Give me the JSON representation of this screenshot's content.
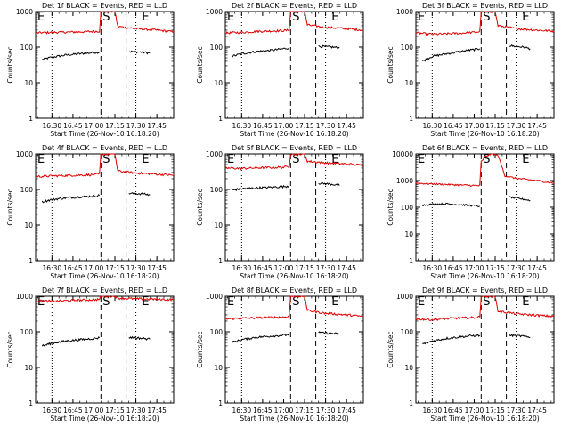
{
  "colors": {
    "events": "#000000",
    "lld": "#e00000",
    "background": "#ffffff"
  },
  "chart_data": [
    {
      "type": "line",
      "title": "Det 1f BLACK = Events, RED = LLD",
      "xlabel": "Start Time (26-Nov-10 16:18:20)",
      "ylabel": "Counts/sec",
      "y_scale": "log",
      "ylim": [
        1,
        1000
      ],
      "y_ticks": [
        "1",
        "10",
        "100",
        "1000"
      ],
      "x_ticks": [
        "16:30",
        "16:45",
        "17:00",
        "17:15",
        "17:30",
        "17:45"
      ],
      "xlim": [
        "16:18:20",
        "17:57"
      ],
      "markers": {
        "E1": "16:18:20",
        "S": "17:05",
        "E2": "17:23"
      },
      "series": [
        {
          "name": "Events",
          "x": [
            "16:23",
            "16:30",
            "16:40",
            "16:50",
            "17:00",
            "17:04",
            "17:15",
            "17:25",
            "17:35",
            "17:40"
          ],
          "y": [
            45,
            52,
            60,
            65,
            70,
            72,
            null,
            75,
            72,
            68
          ]
        },
        {
          "name": "LLD",
          "x": [
            "16:18:20",
            "16:30",
            "16:45",
            "17:00",
            "17:04",
            "17:05",
            "17:15",
            "17:17",
            "17:30",
            "17:45",
            "17:57"
          ],
          "y": [
            250,
            260,
            265,
            275,
            280,
            1000,
            1000,
            380,
            330,
            300,
            270
          ]
        }
      ]
    },
    {
      "type": "line",
      "title": "Det 2f BLACK = Events, RED = LLD",
      "xlabel": "Start Time (26-Nov-10 16:18:20)",
      "ylabel": "Counts/sec",
      "y_scale": "log",
      "ylim": [
        1,
        1000
      ],
      "y_ticks": [
        "1",
        "10",
        "100",
        "1000"
      ],
      "x_ticks": [
        "16:30",
        "16:45",
        "17:00",
        "17:15",
        "17:30",
        "17:45"
      ],
      "xlim": [
        "16:18:20",
        "17:57"
      ],
      "markers": {
        "E1": "16:18:20",
        "S": "17:05",
        "E2": "17:23"
      },
      "series": [
        {
          "name": "Events",
          "x": [
            "16:23",
            "16:30",
            "16:40",
            "16:50",
            "17:00",
            "17:04",
            "17:15",
            "17:25",
            "17:35",
            "17:40"
          ],
          "y": [
            55,
            65,
            75,
            80,
            90,
            95,
            null,
            105,
            100,
            95
          ]
        },
        {
          "name": "LLD",
          "x": [
            "16:18:20",
            "16:30",
            "16:45",
            "17:00",
            "17:04",
            "17:05",
            "17:15",
            "17:17",
            "17:30",
            "17:45",
            "17:57"
          ],
          "y": [
            250,
            260,
            280,
            290,
            300,
            1000,
            1000,
            420,
            360,
            330,
            300
          ]
        }
      ]
    },
    {
      "type": "line",
      "title": "Det 3f BLACK = Events, RED = LLD",
      "xlabel": "Start Time (26-Nov-10 16:18:20)",
      "ylabel": "Counts/sec",
      "y_scale": "log",
      "ylim": [
        1,
        1000
      ],
      "y_ticks": [
        "1",
        "10",
        "100",
        "1000"
      ],
      "x_ticks": [
        "16:30",
        "16:45",
        "17:00",
        "17:15",
        "17:30",
        "17:45"
      ],
      "xlim": [
        "16:18:20",
        "17:57"
      ],
      "markers": {
        "E1": "16:18:20",
        "S": "17:05",
        "E2": "17:23"
      },
      "series": [
        {
          "name": "Events",
          "x": [
            "16:23",
            "16:30",
            "16:40",
            "16:50",
            "17:00",
            "17:04",
            "17:15",
            "17:25",
            "17:35",
            "17:40"
          ],
          "y": [
            40,
            55,
            65,
            75,
            85,
            90,
            null,
            110,
            100,
            90
          ]
        },
        {
          "name": "LLD",
          "x": [
            "16:18:20",
            "16:30",
            "16:45",
            "17:00",
            "17:04",
            "17:05",
            "17:15",
            "17:17",
            "17:30",
            "17:45",
            "17:57"
          ],
          "y": [
            250,
            230,
            240,
            260,
            270,
            1000,
            1000,
            400,
            330,
            300,
            280
          ]
        }
      ]
    },
    {
      "type": "line",
      "title": "Det 4f BLACK = Events, RED = LLD",
      "xlabel": "Start Time (26-Nov-10 16:18:20)",
      "ylabel": "Counts/sec",
      "y_scale": "log",
      "ylim": [
        1,
        1000
      ],
      "y_ticks": [
        "1",
        "10",
        "100",
        "1000"
      ],
      "x_ticks": [
        "16:30",
        "16:45",
        "17:00",
        "17:15",
        "17:30",
        "17:45"
      ],
      "xlim": [
        "16:18:20",
        "17:57"
      ],
      "markers": {
        "E1": "16:18:20",
        "S": "17:05",
        "E2": "17:23"
      },
      "series": [
        {
          "name": "Events",
          "x": [
            "16:23",
            "16:30",
            "16:40",
            "16:50",
            "17:00",
            "17:04",
            "17:15",
            "17:25",
            "17:35",
            "17:40"
          ],
          "y": [
            45,
            52,
            58,
            62,
            65,
            68,
            null,
            78,
            75,
            70
          ]
        },
        {
          "name": "LLD",
          "x": [
            "16:18:20",
            "16:30",
            "16:45",
            "17:00",
            "17:04",
            "17:05",
            "17:15",
            "17:17",
            "17:30",
            "17:45",
            "17:57"
          ],
          "y": [
            230,
            240,
            250,
            260,
            270,
            1000,
            1000,
            330,
            290,
            270,
            250
          ]
        }
      ]
    },
    {
      "type": "line",
      "title": "Det 5f BLACK = Events, RED = LLD",
      "xlabel": "Start Time (26-Nov-10 16:18:20)",
      "ylabel": "Counts/sec",
      "y_scale": "log",
      "ylim": [
        1,
        1000
      ],
      "y_ticks": [
        "1",
        "10",
        "100",
        "1000"
      ],
      "x_ticks": [
        "16:30",
        "16:45",
        "17:00",
        "17:15",
        "17:30",
        "17:45"
      ],
      "xlim": [
        "16:18:20",
        "17:57"
      ],
      "markers": {
        "E1": "16:18:20",
        "S": "17:05",
        "E2": "17:23"
      },
      "series": [
        {
          "name": "Events",
          "x": [
            "16:23",
            "16:30",
            "16:40",
            "16:50",
            "17:00",
            "17:04",
            "17:15",
            "17:25",
            "17:35",
            "17:40"
          ],
          "y": [
            95,
            105,
            110,
            115,
            120,
            125,
            null,
            150,
            140,
            130
          ]
        },
        {
          "name": "LLD",
          "x": [
            "16:18:20",
            "16:30",
            "16:45",
            "17:00",
            "17:04",
            "17:05",
            "17:15",
            "17:17",
            "17:30",
            "17:45",
            "17:57"
          ],
          "y": [
            400,
            390,
            410,
            420,
            450,
            1000,
            1000,
            620,
            560,
            520,
            480
          ]
        }
      ]
    },
    {
      "type": "line",
      "title": "Det 6f BLACK = Events, RED = LLD",
      "xlabel": "Start Time (26-Nov-10 16:18:20)",
      "ylabel": "Counts/sec",
      "y_scale": "log",
      "ylim": [
        1,
        10000
      ],
      "y_ticks": [
        "1",
        "10",
        "100",
        "1000",
        "10000"
      ],
      "x_ticks": [
        "16:30",
        "16:45",
        "17:00",
        "17:15",
        "17:30",
        "17:45"
      ],
      "xlim": [
        "16:18:20",
        "17:57"
      ],
      "markers": {
        "E1": "16:18:20",
        "S": "17:05",
        "E2": "17:23"
      },
      "series": [
        {
          "name": "Events",
          "x": [
            "16:23",
            "16:30",
            "16:40",
            "16:50",
            "17:00",
            "17:04",
            "17:15",
            "17:25",
            "17:35",
            "17:40"
          ],
          "y": [
            120,
            130,
            135,
            125,
            115,
            110,
            null,
            240,
            200,
            180
          ]
        },
        {
          "name": "LLD",
          "x": [
            "16:18:20",
            "16:30",
            "16:45",
            "17:00",
            "17:04",
            "17:05",
            "17:08",
            "17:12",
            "17:17",
            "17:22",
            "17:30",
            "17:45",
            "17:57"
          ],
          "y": [
            800,
            750,
            700,
            650,
            650,
            5000,
            8000,
            10000,
            9000,
            1500,
            1200,
            1000,
            800
          ]
        }
      ]
    },
    {
      "type": "line",
      "title": "Det 7f BLACK = Events, RED = LLD",
      "xlabel": "Start Time (26-Nov-10 16:18:20)",
      "ylabel": "Counts/sec",
      "y_scale": "log",
      "ylim": [
        1,
        1000
      ],
      "y_ticks": [
        "1",
        "10",
        "100",
        "1000"
      ],
      "x_ticks": [
        "16:30",
        "16:45",
        "17:00",
        "17:15",
        "17:30",
        "17:45"
      ],
      "xlim": [
        "16:18:20",
        "17:57"
      ],
      "markers": {
        "E1": "16:18:20",
        "S": "17:05",
        "E2": "17:23"
      },
      "series": [
        {
          "name": "Events",
          "x": [
            "16:23",
            "16:30",
            "16:40",
            "16:50",
            "17:00",
            "17:04",
            "17:15",
            "17:25",
            "17:35",
            "17:40"
          ],
          "y": [
            40,
            48,
            55,
            60,
            65,
            68,
            null,
            70,
            65,
            62
          ]
        },
        {
          "name": "LLD",
          "x": [
            "16:18:20",
            "16:30",
            "16:45",
            "17:00",
            "17:04",
            "17:05",
            "17:15",
            "17:17",
            "17:30",
            "17:45",
            "17:57"
          ],
          "y": [
            750,
            720,
            760,
            800,
            820,
            1000,
            1000,
            880,
            850,
            820,
            800
          ]
        }
      ]
    },
    {
      "type": "line",
      "title": "Det 8f BLACK = Events, RED = LLD",
      "xlabel": "Start Time (26-Nov-10 16:18:20)",
      "ylabel": "Counts/sec",
      "y_scale": "log",
      "ylim": [
        1,
        1000
      ],
      "y_ticks": [
        "1",
        "10",
        "100",
        "1000"
      ],
      "x_ticks": [
        "16:30",
        "16:45",
        "17:00",
        "17:15",
        "17:30",
        "17:45"
      ],
      "xlim": [
        "16:18:20",
        "17:57"
      ],
      "markers": {
        "E1": "16:18:20",
        "S": "17:05",
        "E2": "17:23"
      },
      "series": [
        {
          "name": "Events",
          "x": [
            "16:23",
            "16:30",
            "16:40",
            "16:50",
            "17:00",
            "17:04",
            "17:15",
            "17:25",
            "17:35",
            "17:40"
          ],
          "y": [
            50,
            60,
            70,
            75,
            80,
            85,
            null,
            95,
            90,
            85
          ]
        },
        {
          "name": "LLD",
          "x": [
            "16:18:20",
            "16:30",
            "16:45",
            "17:00",
            "17:04",
            "17:05",
            "17:15",
            "17:17",
            "17:30",
            "17:45",
            "17:57"
          ],
          "y": [
            230,
            240,
            250,
            260,
            270,
            1000,
            1000,
            400,
            330,
            300,
            270
          ]
        }
      ]
    },
    {
      "type": "line",
      "title": "Det 9f BLACK = Events, RED = LLD",
      "xlabel": "Start Time (26-Nov-10 16:18:20)",
      "ylabel": "Counts/sec",
      "y_scale": "log",
      "ylim": [
        1,
        1000
      ],
      "y_ticks": [
        "1",
        "10",
        "100",
        "1000"
      ],
      "x_ticks": [
        "16:30",
        "16:45",
        "17:00",
        "17:15",
        "17:30",
        "17:45"
      ],
      "xlim": [
        "16:18:20",
        "17:57"
      ],
      "markers": {
        "E1": "16:18:20",
        "S": "17:05",
        "E2": "17:23"
      },
      "series": [
        {
          "name": "Events",
          "x": [
            "16:23",
            "16:30",
            "16:40",
            "16:50",
            "17:00",
            "17:04",
            "17:15",
            "17:25",
            "17:35",
            "17:40"
          ],
          "y": [
            45,
            55,
            65,
            72,
            78,
            80,
            null,
            80,
            75,
            70
          ]
        },
        {
          "name": "LLD",
          "x": [
            "16:18:20",
            "16:30",
            "16:45",
            "17:00",
            "17:04",
            "17:05",
            "17:15",
            "17:17",
            "17:30",
            "17:45",
            "17:57"
          ],
          "y": [
            230,
            220,
            240,
            250,
            260,
            1000,
            1000,
            380,
            320,
            290,
            270
          ]
        }
      ]
    }
  ]
}
